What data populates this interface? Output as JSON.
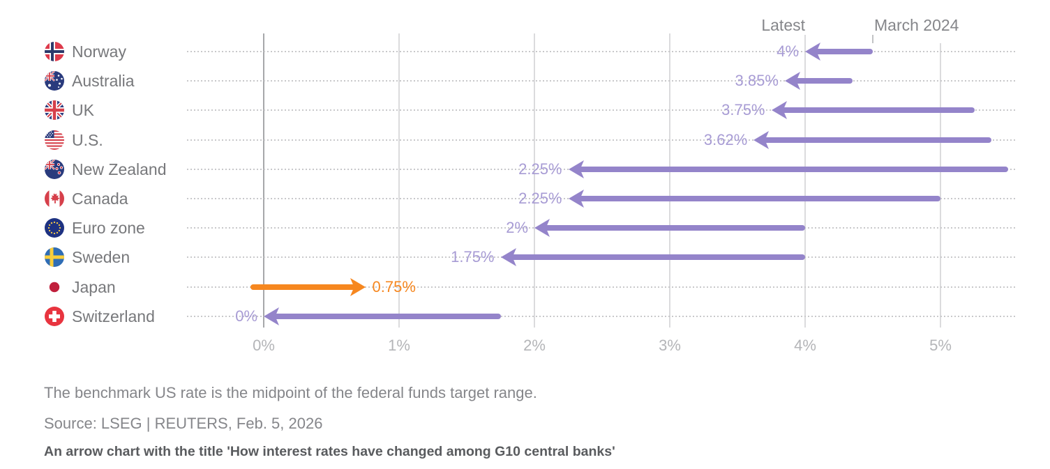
{
  "colors": {
    "purple_arrow": "#9484ca",
    "purple_label": "#a79bd4",
    "orange": "#f6871f",
    "grid_line": "#dbdbdd",
    "zero_line": "#a6a7aa",
    "dotted_line": "#c8c8ca",
    "country_label": "#77787b",
    "axis_label": "#b4b5b8",
    "header_label": "#85868a",
    "footnote": "#85868a",
    "alt_text": "#595b5e"
  },
  "header": {
    "latest": "Latest",
    "march": "March 2024"
  },
  "chart_data": {
    "type": "arrow",
    "title": "How interest rates have changed among G10 central banks",
    "x_axis": {
      "tick_labels": [
        "0%",
        "1%",
        "2%",
        "3%",
        "4%",
        "5%"
      ],
      "tick_values": [
        0,
        1,
        2,
        3,
        4,
        5
      ],
      "range": [
        -0.57,
        5.57
      ],
      "unit": "percent"
    },
    "legend": [
      "Latest",
      "March 2024"
    ],
    "series": [
      {
        "id": "norway",
        "country": "Norway",
        "latest": 4.0,
        "march_2024": 4.5,
        "latest_label": "4%",
        "color": "purple"
      },
      {
        "id": "australia",
        "country": "Australia",
        "latest": 3.85,
        "march_2024": 4.35,
        "latest_label": "3.85%",
        "color": "purple"
      },
      {
        "id": "uk",
        "country": "UK",
        "latest": 3.75,
        "march_2024": 5.25,
        "latest_label": "3.75%",
        "color": "purple"
      },
      {
        "id": "us",
        "country": "U.S.",
        "latest": 3.62,
        "march_2024": 5.375,
        "latest_label": "3.62%",
        "color": "purple"
      },
      {
        "id": "new-zealand",
        "country": "New Zealand",
        "latest": 2.25,
        "march_2024": 5.5,
        "latest_label": "2.25%",
        "color": "purple"
      },
      {
        "id": "canada",
        "country": "Canada",
        "latest": 2.25,
        "march_2024": 5.0,
        "latest_label": "2.25%",
        "color": "purple"
      },
      {
        "id": "euro-zone",
        "country": "Euro zone",
        "latest": 2.0,
        "march_2024": 4.0,
        "latest_label": "2%",
        "color": "purple"
      },
      {
        "id": "sweden",
        "country": "Sweden",
        "latest": 1.75,
        "march_2024": 4.0,
        "latest_label": "1.75%",
        "color": "purple"
      },
      {
        "id": "japan",
        "country": "Japan",
        "latest": 0.75,
        "march_2024": -0.1,
        "latest_label": "0.75%",
        "color": "orange"
      },
      {
        "id": "switzerland",
        "country": "Switzerland",
        "latest": 0.0,
        "march_2024": 1.75,
        "latest_label": "0%",
        "color": "purple"
      }
    ]
  },
  "footer": {
    "note": "The benchmark US rate is the midpoint of the federal funds target range.",
    "source": "Source: LSEG | REUTERS, Feb. 5, 2026",
    "alt_text": "An arrow chart with the title 'How interest rates have changed among G10 central banks'"
  }
}
